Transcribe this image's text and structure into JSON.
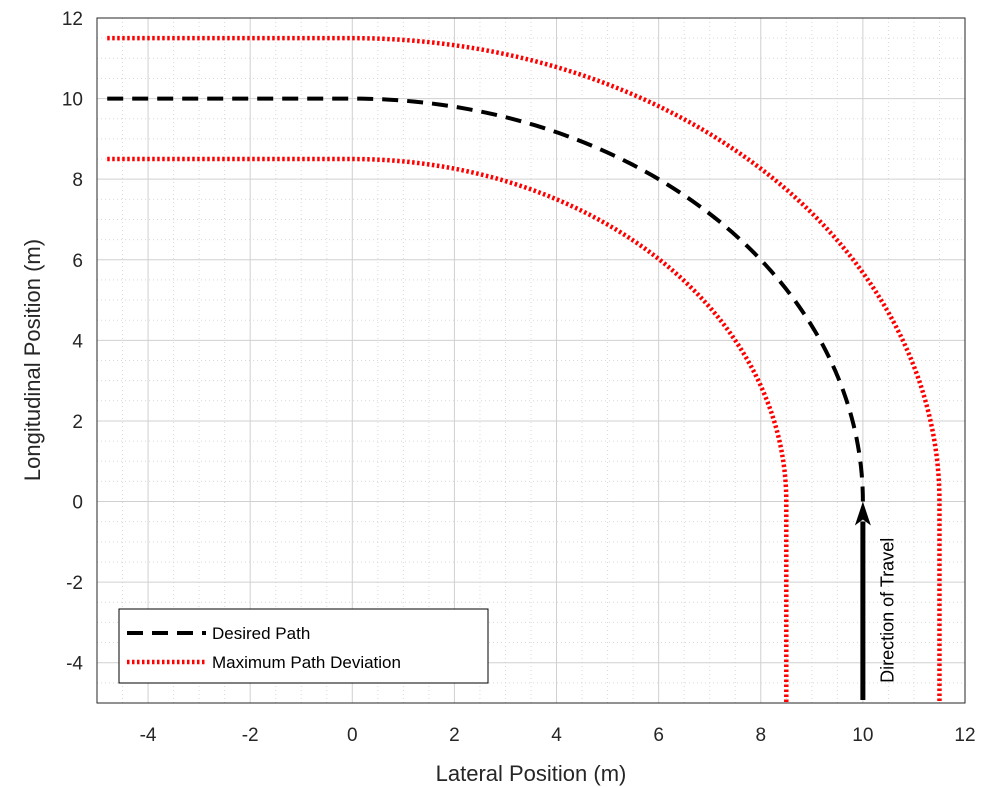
{
  "chart_data": {
    "type": "line",
    "xlabel": "Lateral Position (m)",
    "ylabel": "Longitudinal Position (m)",
    "xlim": [
      -5,
      12
    ],
    "ylim": [
      -5,
      12
    ],
    "x_ticks": [
      -4,
      -2,
      0,
      2,
      4,
      6,
      8,
      10,
      12
    ],
    "y_ticks": [
      -4,
      -2,
      0,
      2,
      4,
      6,
      8,
      10,
      12
    ],
    "grid": true,
    "minor_grid": true,
    "legend_position": "bottom-left",
    "series": [
      {
        "name": "Desired Path",
        "style": "dashed",
        "color": "#000000",
        "segments": [
          {
            "kind": "line",
            "from": [
              -4.8,
              10
            ],
            "to": [
              0,
              10
            ]
          },
          {
            "kind": "arc",
            "center": [
              0,
              0
            ],
            "radius": 10,
            "from_deg": 90,
            "to_deg": 0
          }
        ]
      },
      {
        "name": "Maximum Path Deviation",
        "style": "dotted",
        "color": "#ff0000",
        "segments": [
          {
            "kind": "line",
            "from": [
              -4.8,
              11.5
            ],
            "to": [
              0,
              11.5
            ]
          },
          {
            "kind": "arc",
            "center": [
              0,
              0
            ],
            "radius": 11.5,
            "from_deg": 90,
            "to_deg": 0
          },
          {
            "kind": "line",
            "from": [
              11.5,
              0
            ],
            "to": [
              11.5,
              -5
            ]
          }
        ]
      },
      {
        "name": "",
        "style": "dotted",
        "color": "#ff0000",
        "segments": [
          {
            "kind": "line",
            "from": [
              -4.8,
              8.5
            ],
            "to": [
              0,
              8.5
            ]
          },
          {
            "kind": "arc",
            "center": [
              0,
              0
            ],
            "radius": 8.5,
            "from_deg": 90,
            "to_deg": 0
          },
          {
            "kind": "line",
            "from": [
              8.5,
              0
            ],
            "to": [
              8.5,
              -5
            ]
          }
        ]
      }
    ],
    "annotations": [
      {
        "type": "arrow",
        "from": [
          10,
          -5
        ],
        "to": [
          10,
          0
        ],
        "color": "#000000"
      },
      {
        "type": "text",
        "text": "Direction of Travel",
        "at": [
          10.6,
          -4.5
        ],
        "rotation": -90
      }
    ]
  }
}
